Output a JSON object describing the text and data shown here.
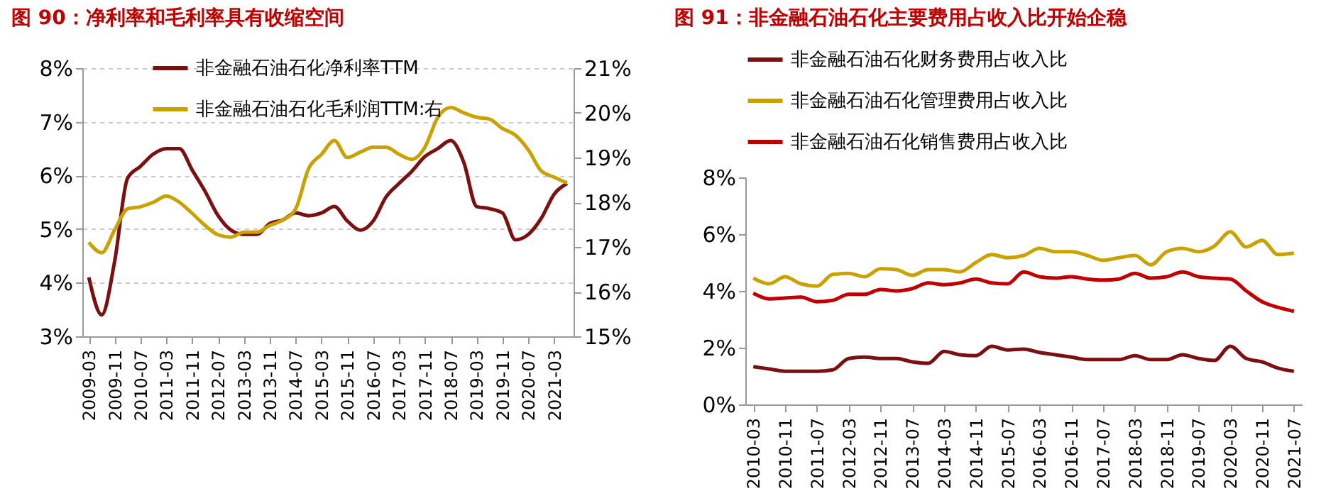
{
  "chart_data": [
    {
      "type": "line",
      "title": "图 90：净利率和毛利率具有收缩空间",
      "categories": [
        "2009-03",
        null,
        "2009-11",
        null,
        "2010-07",
        null,
        "2011-03",
        null,
        "2011-11",
        null,
        "2012-07",
        null,
        "2013-03",
        null,
        "2013-11",
        null,
        "2014-07",
        null,
        "2015-03",
        null,
        "2015-11",
        null,
        "2016-07",
        null,
        "2017-03",
        null,
        "2017-11",
        null,
        "2018-07",
        null,
        "2019-03",
        null,
        "2019-11",
        null,
        "2020-07",
        null,
        "2021-03",
        null
      ],
      "series": [
        {
          "name": "非金融石油石化净利率TTM",
          "color": "#7b1010",
          "values": [
            4.1,
            3.4,
            4.4,
            5.95,
            6.17,
            6.4,
            6.5,
            6.5,
            6.1,
            5.7,
            5.25,
            4.98,
            4.9,
            4.9,
            5.1,
            5.17,
            5.3,
            5.25,
            5.3,
            5.42,
            5.15,
            4.98,
            5.15,
            5.6,
            5.85,
            6.08,
            6.35,
            6.5,
            6.65,
            6.25,
            5.42,
            5.38,
            5.3,
            4.8,
            4.9,
            5.2,
            5.65,
            5.85
          ]
        },
        {
          "name": "非金融石油石化毛利润TTM:右",
          "color": "#c9a200",
          "axis": "y2",
          "values": [
            17.1,
            16.87,
            17.38,
            17.85,
            17.9,
            18.0,
            18.14,
            18.0,
            17.75,
            17.48,
            17.27,
            17.22,
            17.33,
            17.33,
            17.48,
            17.6,
            17.85,
            18.75,
            19.07,
            19.38,
            19.0,
            19.12,
            19.23,
            19.23,
            19.07,
            18.96,
            19.23,
            19.9,
            20.12,
            20.0,
            19.9,
            19.86,
            19.65,
            19.5,
            19.17,
            18.7,
            18.56,
            18.43
          ]
        }
      ],
      "ylim": [
        3,
        8
      ],
      "yticks": [
        {
          "value": 3,
          "label": "3%"
        },
        {
          "value": 4,
          "label": "4%"
        },
        {
          "value": 5,
          "label": "5%"
        },
        {
          "value": 6,
          "label": "6%"
        },
        {
          "value": 7,
          "label": "7%"
        },
        {
          "value": 8,
          "label": "8%"
        }
      ],
      "y2lim": [
        15,
        21
      ],
      "y2ticks": [
        {
          "value": 15,
          "label": "15%"
        },
        {
          "value": 16,
          "label": "16%"
        },
        {
          "value": 17,
          "label": "17%"
        },
        {
          "value": 18,
          "label": "18%"
        },
        {
          "value": 19,
          "label": "19%"
        },
        {
          "value": 20,
          "label": "20%"
        },
        {
          "value": 21,
          "label": "21%"
        }
      ],
      "grid": "y",
      "legend": "top",
      "line_style": "solid"
    },
    {
      "type": "line",
      "title": "图 91：非金融石油石化主要费用占收入比开始企稳",
      "categories": [
        "2010-03",
        null,
        "2010-11",
        null,
        "2011-07",
        null,
        "2012-03",
        null,
        "2012-11",
        null,
        "2013-07",
        null,
        "2014-03",
        null,
        "2014-11",
        null,
        "2015-07",
        null,
        "2016-03",
        null,
        "2016-11",
        null,
        "2017-07",
        null,
        "2018-03",
        null,
        "2018-11",
        null,
        "2019-07",
        null,
        "2020-03",
        null,
        "2020-11",
        null,
        "2021-07"
      ],
      "series": [
        {
          "name": "非金融石油石化财务费用占收入比",
          "color": "#7b1010",
          "values": [
            1.33,
            1.25,
            1.17,
            1.17,
            1.17,
            1.22,
            1.62,
            1.67,
            1.62,
            1.62,
            1.5,
            1.45,
            1.87,
            1.75,
            1.72,
            2.05,
            1.92,
            1.95,
            1.83,
            1.75,
            1.67,
            1.58,
            1.58,
            1.58,
            1.72,
            1.58,
            1.58,
            1.75,
            1.62,
            1.55,
            2.05,
            1.62,
            1.5,
            1.28,
            1.17
          ]
        },
        {
          "name": "非金融石油石化管理费用占收入比",
          "color": "#c9a200",
          "values": [
            4.45,
            4.25,
            4.5,
            4.25,
            4.17,
            4.58,
            4.62,
            4.5,
            4.78,
            4.75,
            4.55,
            4.75,
            4.75,
            4.67,
            5.0,
            5.28,
            5.17,
            5.25,
            5.5,
            5.38,
            5.38,
            5.25,
            5.08,
            5.17,
            5.25,
            4.92,
            5.38,
            5.5,
            5.38,
            5.58,
            6.08,
            5.55,
            5.78,
            5.28,
            5.33
          ]
        },
        {
          "name": "非金融石油石化销售费用占收入比",
          "color": "#c00000",
          "values": [
            3.92,
            3.72,
            3.75,
            3.78,
            3.62,
            3.67,
            3.88,
            3.88,
            4.05,
            4.0,
            4.08,
            4.28,
            4.22,
            4.28,
            4.42,
            4.28,
            4.25,
            4.67,
            4.5,
            4.45,
            4.5,
            4.42,
            4.38,
            4.42,
            4.62,
            4.45,
            4.5,
            4.67,
            4.5,
            4.45,
            4.42,
            4.0,
            3.62,
            3.42,
            3.28
          ]
        }
      ],
      "ylim": [
        0,
        8
      ],
      "yticks": [
        {
          "value": 0,
          "label": "0%"
        },
        {
          "value": 2,
          "label": "2%"
        },
        {
          "value": 4,
          "label": "4%"
        },
        {
          "value": 6,
          "label": "6%"
        },
        {
          "value": 8,
          "label": "8%"
        }
      ],
      "legend": "top",
      "line_style": "solid"
    }
  ]
}
